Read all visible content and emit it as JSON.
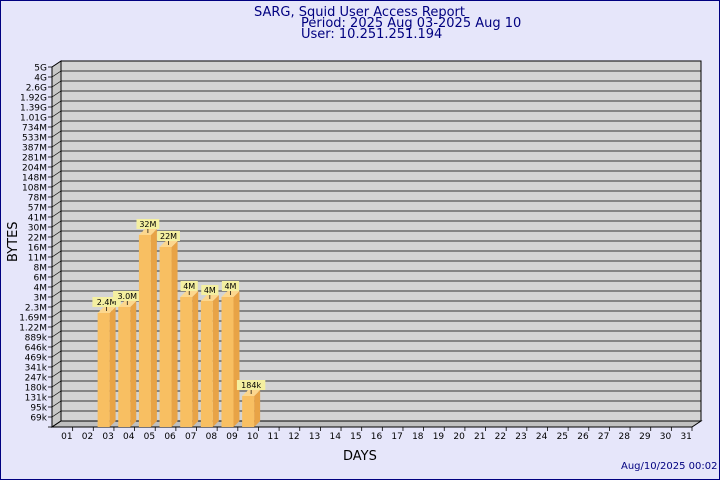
{
  "header": {
    "title": "SARG, Squid User Access Report",
    "period": "Period: 2025 Aug 03-2025 Aug 10",
    "user": "User: 10.251.251.194"
  },
  "footer": {
    "timestamp": "Aug/10/2025 00:02"
  },
  "colors": {
    "page_bg": "#e6e6fa",
    "plot_bg": "#d3d3d3",
    "bar_front": "#f8bf62",
    "bar_side": "#e8a346",
    "bar_top": "#fcd78e",
    "label_bg": "#f4efa0",
    "title": "#000080"
  },
  "chart_data": {
    "type": "bar",
    "title": "SARG, Squid User Access Report",
    "xlabel": "DAYS",
    "ylabel": "BYTES",
    "grid": true,
    "legend": "none",
    "categories": [
      "01",
      "02",
      "03",
      "04",
      "05",
      "06",
      "07",
      "08",
      "09",
      "10",
      "11",
      "12",
      "13",
      "14",
      "15",
      "16",
      "17",
      "18",
      "19",
      "20",
      "21",
      "22",
      "23",
      "24",
      "25",
      "26",
      "27",
      "28",
      "29",
      "30",
      "31"
    ],
    "y_ticks": [
      "69k",
      "95k",
      "131k",
      "180k",
      "247k",
      "341k",
      "469k",
      "646k",
      "889k",
      "1.22M",
      "1.69M",
      "2.3M",
      "3M",
      "4M",
      "6M",
      "8M",
      "11M",
      "16M",
      "22M",
      "30M",
      "41M",
      "57M",
      "78M",
      "108M",
      "148M",
      "204M",
      "281M",
      "387M",
      "533M",
      "734M",
      "1.01G",
      "1.39G",
      "1.92G",
      "2.6G",
      "4G",
      "5G"
    ],
    "series": [
      {
        "values_bytes": [
          null,
          null,
          2400000,
          3000000,
          32000000,
          22000000,
          4000000,
          4000000,
          4000000,
          184000,
          null,
          null,
          null,
          null,
          null,
          null,
          null,
          null,
          null,
          null,
          null,
          null,
          null,
          null,
          null,
          null,
          null,
          null,
          null,
          null,
          null
        ],
        "data_labels": [
          null,
          null,
          "2.4M",
          "3.0M",
          "32M",
          "22M",
          "4M",
          "4M",
          "4M",
          "184k",
          null,
          null,
          null,
          null,
          null,
          null,
          null,
          null,
          null,
          null,
          null,
          null,
          null,
          null,
          null,
          null,
          null,
          null,
          null,
          null,
          null
        ],
        "level_index": [
          null,
          null,
          11.4,
          12.0,
          19.2,
          18.0,
          13.0,
          12.6,
          13.0,
          3.1,
          null,
          null,
          null,
          null,
          null,
          null,
          null,
          null,
          null,
          null,
          null,
          null,
          null,
          null,
          null,
          null,
          null,
          null,
          null,
          null,
          null
        ]
      }
    ]
  }
}
